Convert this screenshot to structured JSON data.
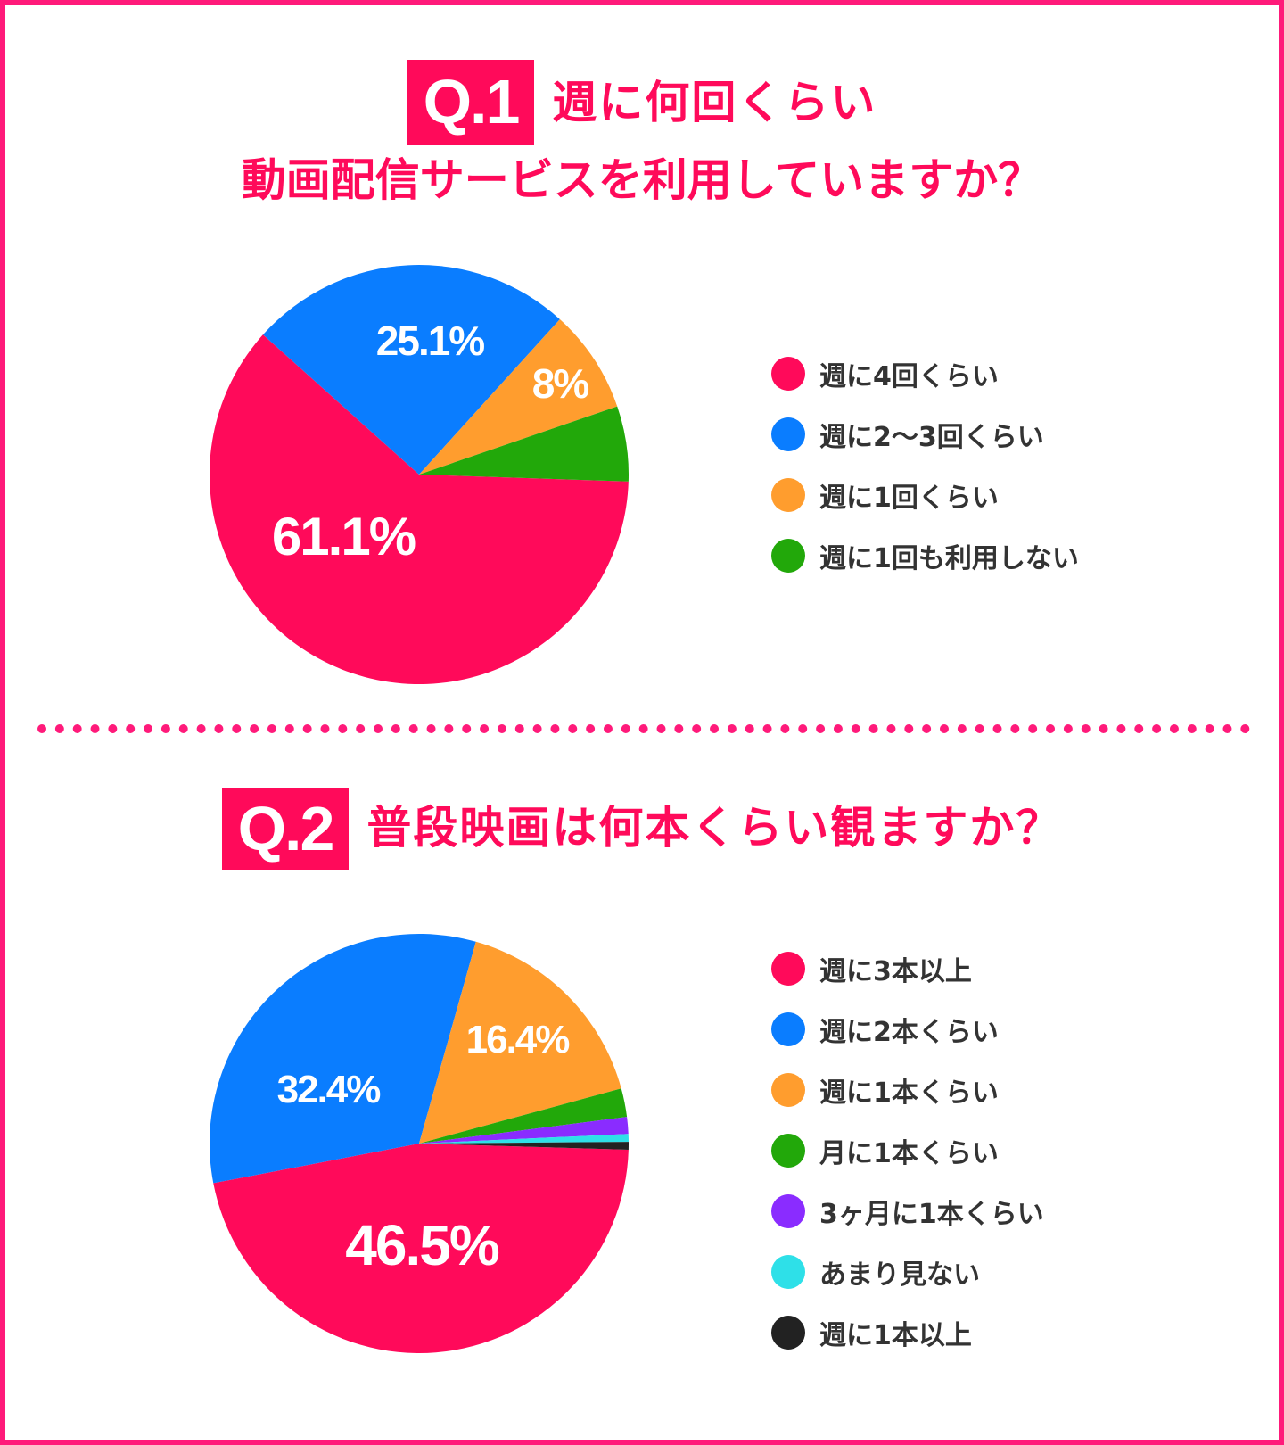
{
  "q1": {
    "badge": "Q.1",
    "title_line1": "週に何回くらい",
    "title_line2": "動画配信サービスを利用していますか？"
  },
  "q2": {
    "badge": "Q.2",
    "title": "普段映画は何本くらい観ますか？"
  },
  "chart_data": [
    {
      "type": "pie",
      "title": "週に何回くらい動画配信サービスを利用していますか？",
      "categories": [
        "週に4回くらい",
        "週に2〜3回くらい",
        "週に1回くらい",
        "週に1回も利用しない"
      ],
      "values": [
        61.1,
        25.1,
        8,
        5.8
      ],
      "labels": [
        "61.1%",
        "25.1%",
        "8%",
        ""
      ],
      "colors": [
        "#ff0a5a",
        "#0a7dff",
        "#ff9d2e",
        "#22a80a"
      ],
      "legend": "right"
    },
    {
      "type": "pie",
      "title": "普段映画は何本くらい観ますか？",
      "categories": [
        "週に3本以上",
        "週に2本くらい",
        "週に1本くらい",
        "月に1本くらい",
        "3ヶ月に1本くらい",
        "あまり見ない",
        "週に1本以上"
      ],
      "values": [
        46.5,
        32.4,
        16.4,
        2.2,
        1.3,
        0.6,
        0.6
      ],
      "labels": [
        "46.5%",
        "32.4%",
        "16.4%",
        "",
        "",
        "",
        ""
      ],
      "colors": [
        "#ff0a5a",
        "#0a7dff",
        "#ff9d2e",
        "#22a80a",
        "#8a2cff",
        "#2ee0e8",
        "#222222"
      ],
      "legend": "right"
    }
  ]
}
